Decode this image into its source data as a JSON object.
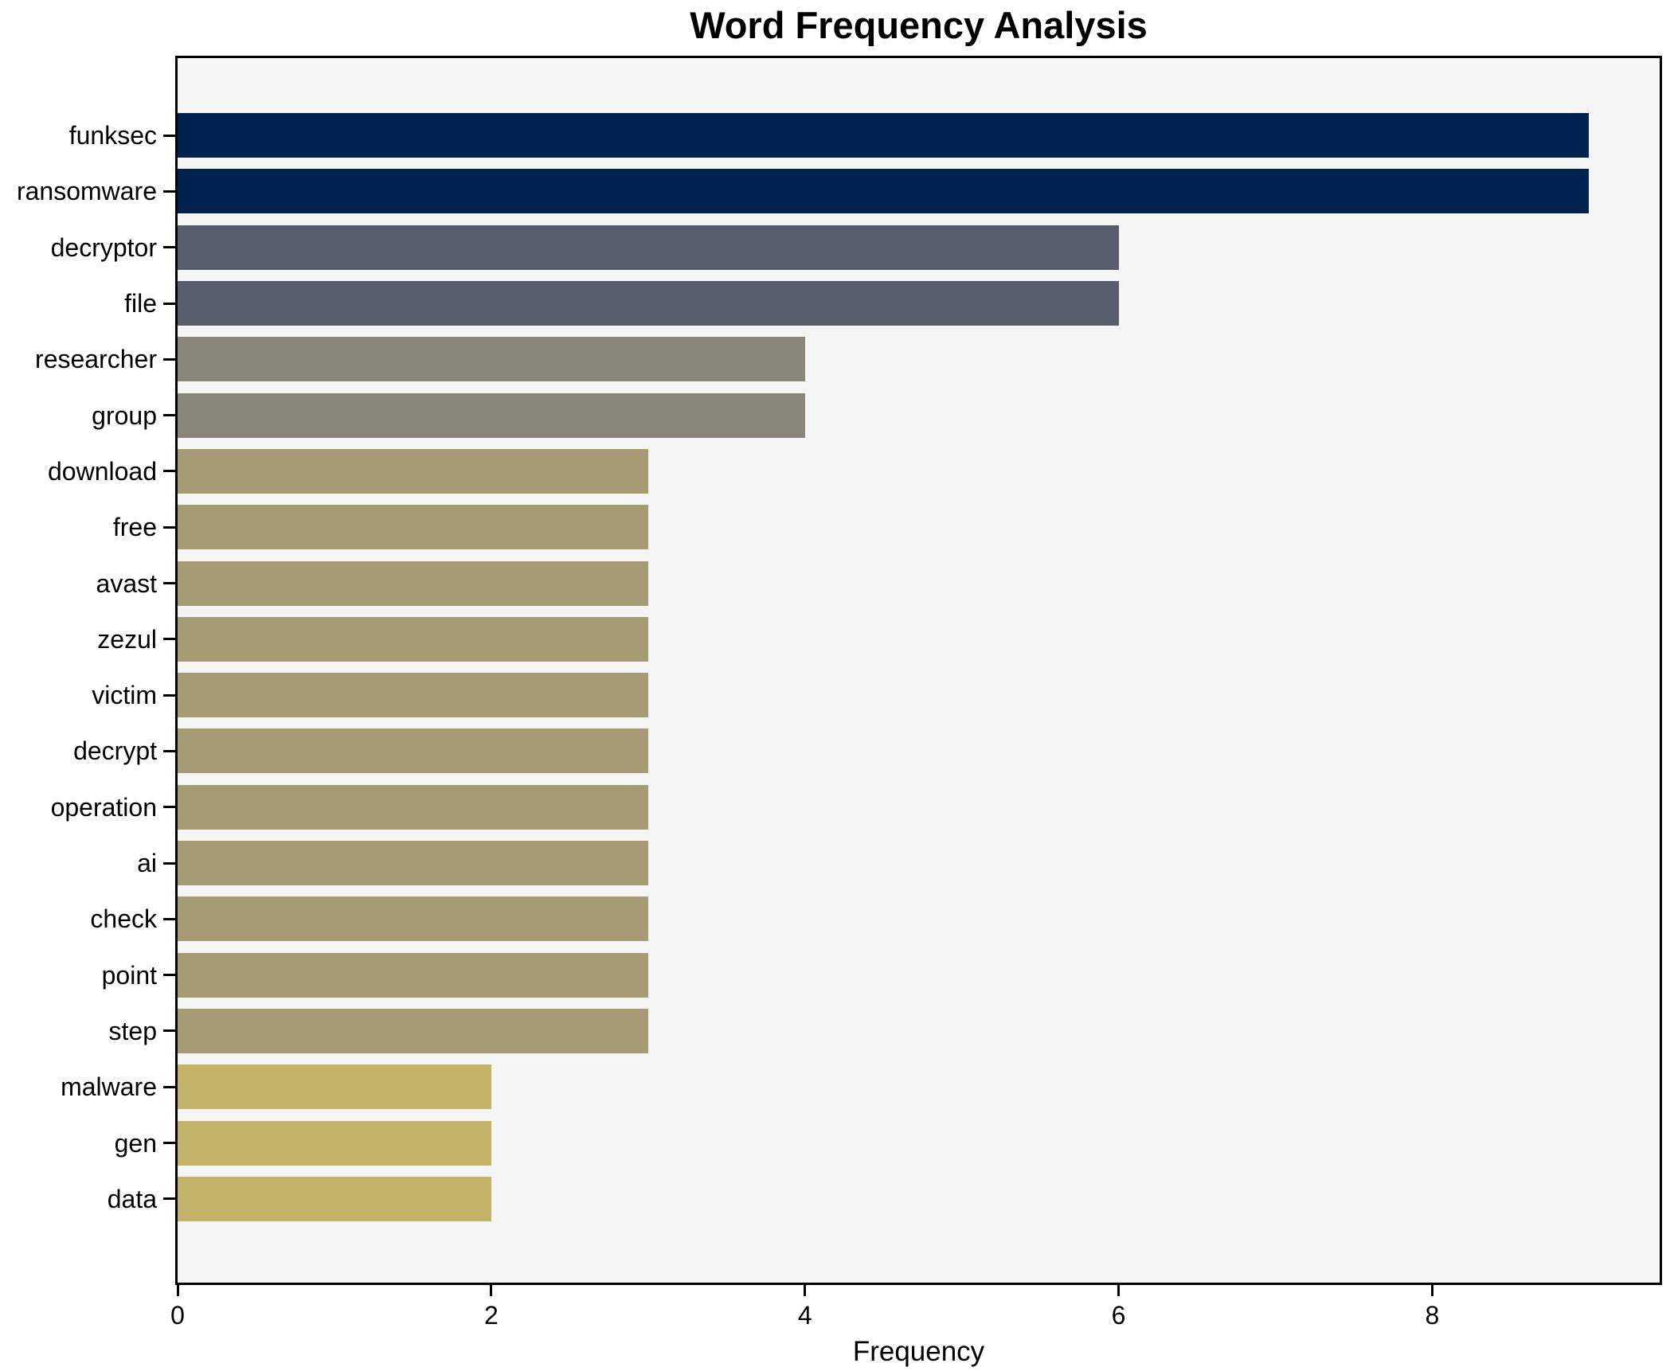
{
  "chart_data": {
    "type": "bar",
    "orientation": "horizontal",
    "title": "Word Frequency Analysis",
    "xlabel": "Frequency",
    "ylabel": "",
    "categories": [
      "funksec",
      "ransomware",
      "decryptor",
      "file",
      "researcher",
      "group",
      "download",
      "free",
      "avast",
      "zezul",
      "victim",
      "decrypt",
      "operation",
      "ai",
      "check",
      "point",
      "step",
      "malware",
      "gen",
      "data"
    ],
    "values": [
      9,
      9,
      6,
      6,
      4,
      4,
      3,
      3,
      3,
      3,
      3,
      3,
      3,
      3,
      3,
      3,
      3,
      2,
      2,
      2
    ],
    "xlim": [
      0,
      9.45
    ],
    "xticks": [
      0,
      2,
      4,
      6,
      8
    ],
    "grid": false,
    "legend": false,
    "colors": {
      "value_9": "#00224e",
      "value_6": "#575d6d",
      "value_4": "#8a8779",
      "value_3": "#a59c74",
      "value_2": "#c3b369",
      "plot_background": "#f5f5f5",
      "figure_background": "#ffffff",
      "axis": "#000000",
      "text": "#000000"
    }
  }
}
